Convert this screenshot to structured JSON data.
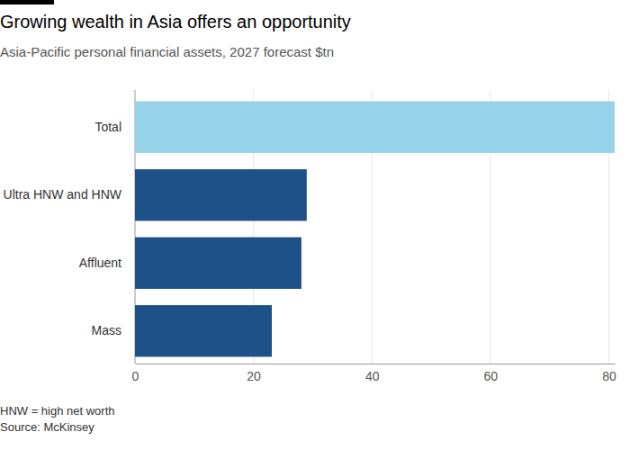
{
  "chart_data": {
    "type": "bar",
    "orientation": "horizontal",
    "title": "Growing wealth in Asia offers an opportunity",
    "subtitle": "Asia-Pacific personal financial assets, 2027 forecast $tn",
    "categories": [
      "Total",
      "Ultra HNW and HNW",
      "Affluent",
      "Mass"
    ],
    "values": [
      81,
      29,
      28.1,
      23.1
    ],
    "colors": [
      "#96d3e8",
      "#1f5189",
      "#1f5189",
      "#1f5189"
    ],
    "xlim": [
      0,
      81
    ],
    "xticks": [
      0,
      20,
      40,
      60,
      80
    ],
    "grid": true,
    "note": "HNW = high net worth",
    "source": "Source: McKinsey"
  }
}
